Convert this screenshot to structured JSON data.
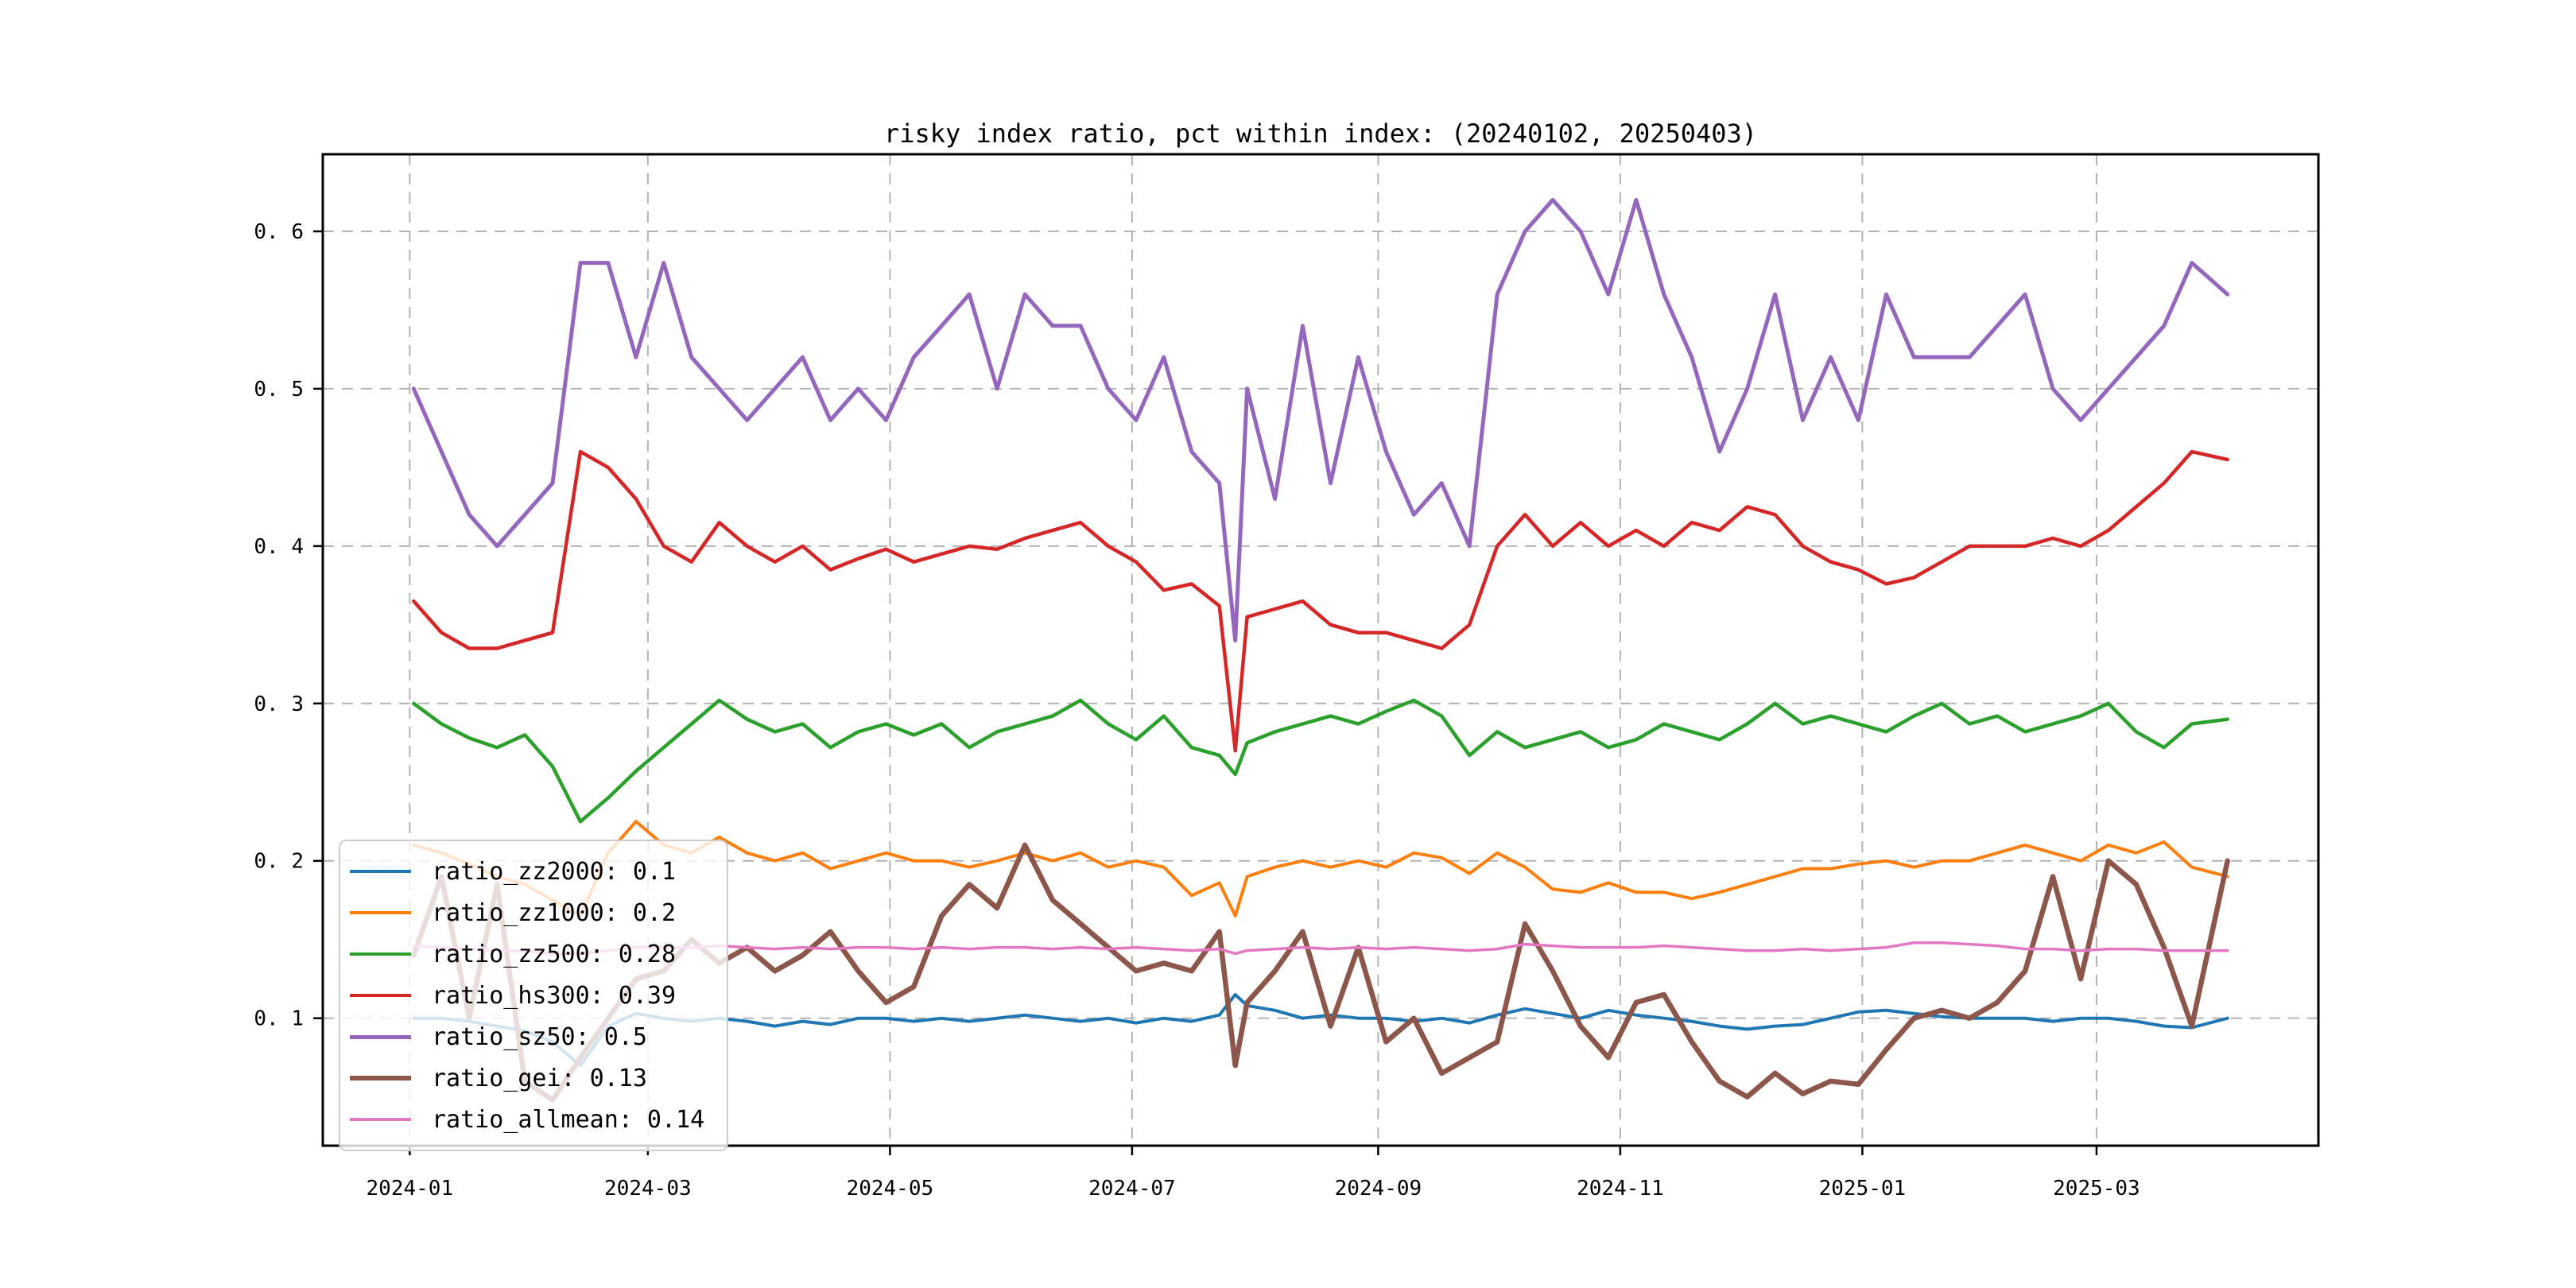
{
  "chart_data": {
    "type": "line",
    "title": "risky index ratio, pct within index: (20240102, 20250403)",
    "grid": {
      "style": "dashed",
      "color": "#b3b3b3",
      "on": true
    },
    "legend": {
      "position": "lower left",
      "background_alpha": 0.8,
      "border_color": "#cccccc"
    },
    "x_axis": {
      "label": "",
      "tick_labels": [
        "2024-01",
        "2024-03",
        "2024-05",
        "2024-07",
        "2024-09",
        "2024-11",
        "2025-01",
        "2025-03"
      ],
      "tick_days": [
        0,
        60,
        121,
        182,
        244,
        305,
        366,
        425
      ]
    },
    "y_axis": {
      "label": "",
      "tick_labels": [
        "0. 1",
        "0. 2",
        "0. 3",
        "0. 4",
        "0. 5",
        "0. 6"
      ],
      "tick_values": [
        0.1,
        0.2,
        0.3,
        0.4,
        0.5,
        0.6
      ]
    },
    "x_day_lim": [
      -21.9,
      480.9
    ],
    "ylim": [
      0.019,
      0.649
    ],
    "dates": [
      "2024-01-02",
      "2024-01-09",
      "2024-01-16",
      "2024-01-23",
      "2024-01-30",
      "2024-02-06",
      "2024-02-13",
      "2024-02-20",
      "2024-02-27",
      "2024-03-05",
      "2024-03-12",
      "2024-03-19",
      "2024-03-26",
      "2024-04-02",
      "2024-04-09",
      "2024-04-16",
      "2024-04-23",
      "2024-04-30",
      "2024-05-07",
      "2024-05-14",
      "2024-05-21",
      "2024-05-28",
      "2024-06-04",
      "2024-06-11",
      "2024-06-18",
      "2024-06-25",
      "2024-07-02",
      "2024-07-09",
      "2024-07-16",
      "2024-07-23",
      "2024-07-27",
      "2024-07-30",
      "2024-08-06",
      "2024-08-13",
      "2024-08-20",
      "2024-08-27",
      "2024-09-03",
      "2024-09-10",
      "2024-09-17",
      "2024-09-24",
      "2024-10-01",
      "2024-10-08",
      "2024-10-15",
      "2024-10-22",
      "2024-10-29",
      "2024-11-05",
      "2024-11-12",
      "2024-11-19",
      "2024-11-26",
      "2024-12-03",
      "2024-12-10",
      "2024-12-17",
      "2024-12-24",
      "2024-12-31",
      "2025-01-07",
      "2025-01-14",
      "2025-01-21",
      "2025-01-28",
      "2025-02-04",
      "2025-02-11",
      "2025-02-18",
      "2025-02-25",
      "2025-03-04",
      "2025-03-11",
      "2025-03-18",
      "2025-03-25",
      "2025-04-03"
    ],
    "x_days": [
      1,
      8,
      15,
      22,
      29,
      36,
      43,
      50,
      57,
      64,
      71,
      78,
      85,
      92,
      99,
      106,
      113,
      120,
      127,
      134,
      141,
      148,
      155,
      162,
      169,
      176,
      183,
      190,
      197,
      204,
      208,
      211,
      218,
      225,
      232,
      239,
      246,
      253,
      260,
      267,
      274,
      281,
      288,
      295,
      302,
      309,
      316,
      323,
      330,
      337,
      344,
      351,
      358,
      365,
      372,
      379,
      386,
      393,
      400,
      407,
      414,
      421,
      428,
      435,
      442,
      449,
      458
    ],
    "series": [
      {
        "name": "ratio_zz2000",
        "legend_label": "ratio_zz2000: 0.1",
        "shown_value": 0.1,
        "color": "#1f77b4",
        "line_width": 4,
        "values": [
          0.1,
          0.1,
          0.098,
          0.095,
          0.092,
          0.085,
          0.07,
          0.095,
          0.103,
          0.1,
          0.098,
          0.1,
          0.098,
          0.095,
          0.098,
          0.096,
          0.1,
          0.1,
          0.098,
          0.1,
          0.098,
          0.1,
          0.102,
          0.1,
          0.098,
          0.1,
          0.097,
          0.1,
          0.098,
          0.102,
          0.115,
          0.108,
          0.105,
          0.1,
          0.102,
          0.1,
          0.1,
          0.098,
          0.1,
          0.097,
          0.102,
          0.106,
          0.103,
          0.1,
          0.105,
          0.102,
          0.1,
          0.098,
          0.095,
          0.093,
          0.095,
          0.096,
          0.1,
          0.104,
          0.105,
          0.103,
          0.101,
          0.1,
          0.1,
          0.1,
          0.098,
          0.1,
          0.1,
          0.098,
          0.095,
          0.094,
          0.1
        ]
      },
      {
        "name": "ratio_zz1000",
        "legend_label": "ratio_zz1000: 0.2",
        "shown_value": 0.2,
        "color": "#ff7f0e",
        "line_width": 4,
        "values": [
          0.21,
          0.205,
          0.198,
          0.19,
          0.185,
          0.175,
          0.165,
          0.205,
          0.225,
          0.21,
          0.205,
          0.215,
          0.205,
          0.2,
          0.205,
          0.195,
          0.2,
          0.205,
          0.2,
          0.2,
          0.196,
          0.2,
          0.205,
          0.2,
          0.205,
          0.196,
          0.2,
          0.196,
          0.178,
          0.186,
          0.165,
          0.19,
          0.196,
          0.2,
          0.196,
          0.2,
          0.196,
          0.205,
          0.202,
          0.192,
          0.205,
          0.196,
          0.182,
          0.18,
          0.186,
          0.18,
          0.18,
          0.176,
          0.18,
          0.185,
          0.19,
          0.195,
          0.195,
          0.198,
          0.2,
          0.196,
          0.2,
          0.2,
          0.205,
          0.21,
          0.205,
          0.2,
          0.21,
          0.205,
          0.212,
          0.196,
          0.19
        ]
      },
      {
        "name": "ratio_zz500",
        "legend_label": "ratio_zz500: 0.28",
        "shown_value": 0.28,
        "color": "#2ca02c",
        "line_width": 4.5,
        "values": [
          0.3,
          0.287,
          0.278,
          0.272,
          0.28,
          0.26,
          0.225,
          0.24,
          0.257,
          0.272,
          0.287,
          0.302,
          0.29,
          0.282,
          0.287,
          0.272,
          0.282,
          0.287,
          0.28,
          0.287,
          0.272,
          0.282,
          0.287,
          0.292,
          0.302,
          0.287,
          0.277,
          0.292,
          0.272,
          0.267,
          0.255,
          0.275,
          0.282,
          0.287,
          0.292,
          0.287,
          0.295,
          0.302,
          0.292,
          0.267,
          0.282,
          0.272,
          0.277,
          0.282,
          0.272,
          0.277,
          0.287,
          0.282,
          0.277,
          0.287,
          0.3,
          0.287,
          0.292,
          0.287,
          0.282,
          0.292,
          0.3,
          0.287,
          0.292,
          0.282,
          0.287,
          0.292,
          0.3,
          0.282,
          0.272,
          0.287,
          0.29
        ]
      },
      {
        "name": "ratio_hs300",
        "legend_label": "ratio_hs300: 0.39",
        "shown_value": 0.39,
        "color": "#d62728",
        "line_width": 4.5,
        "values": [
          0.365,
          0.345,
          0.335,
          0.335,
          0.34,
          0.345,
          0.46,
          0.45,
          0.43,
          0.4,
          0.39,
          0.415,
          0.4,
          0.39,
          0.4,
          0.385,
          0.392,
          0.398,
          0.39,
          0.395,
          0.4,
          0.398,
          0.405,
          0.41,
          0.415,
          0.4,
          0.39,
          0.372,
          0.376,
          0.362,
          0.27,
          0.355,
          0.36,
          0.365,
          0.35,
          0.345,
          0.345,
          0.34,
          0.335,
          0.35,
          0.4,
          0.42,
          0.4,
          0.415,
          0.4,
          0.41,
          0.4,
          0.415,
          0.41,
          0.425,
          0.42,
          0.4,
          0.39,
          0.385,
          0.376,
          0.38,
          0.39,
          0.4,
          0.4,
          0.4,
          0.405,
          0.4,
          0.41,
          0.425,
          0.44,
          0.46,
          0.455
        ]
      },
      {
        "name": "ratio_sz50",
        "legend_label": "ratio_sz50: 0.5",
        "shown_value": 0.5,
        "color": "#9467bd",
        "line_width": 5,
        "values": [
          0.5,
          0.46,
          0.42,
          0.4,
          0.42,
          0.44,
          0.58,
          0.58,
          0.52,
          0.58,
          0.52,
          0.5,
          0.48,
          0.5,
          0.52,
          0.48,
          0.5,
          0.48,
          0.52,
          0.54,
          0.56,
          0.5,
          0.56,
          0.54,
          0.54,
          0.5,
          0.48,
          0.52,
          0.46,
          0.44,
          0.34,
          0.5,
          0.43,
          0.54,
          0.44,
          0.52,
          0.46,
          0.42,
          0.44,
          0.4,
          0.56,
          0.6,
          0.62,
          0.6,
          0.56,
          0.62,
          0.56,
          0.52,
          0.46,
          0.5,
          0.56,
          0.48,
          0.52,
          0.48,
          0.56,
          0.52,
          0.52,
          0.52,
          0.54,
          0.56,
          0.5,
          0.48,
          0.5,
          0.52,
          0.54,
          0.58,
          0.56
        ]
      },
      {
        "name": "ratio_gei",
        "legend_label": "ratio_gei: 0.13",
        "shown_value": 0.13,
        "color": "#8c564b",
        "line_width": 6.5,
        "values": [
          0.14,
          0.19,
          0.1,
          0.185,
          0.06,
          0.048,
          0.075,
          0.1,
          0.125,
          0.13,
          0.15,
          0.135,
          0.145,
          0.13,
          0.14,
          0.155,
          0.13,
          0.11,
          0.12,
          0.165,
          0.185,
          0.17,
          0.21,
          0.175,
          0.16,
          0.145,
          0.13,
          0.135,
          0.13,
          0.155,
          0.07,
          0.11,
          0.13,
          0.155,
          0.095,
          0.145,
          0.085,
          0.1,
          0.065,
          0.075,
          0.085,
          0.16,
          0.13,
          0.095,
          0.075,
          0.11,
          0.115,
          0.085,
          0.06,
          0.05,
          0.065,
          0.052,
          0.06,
          0.058,
          0.08,
          0.1,
          0.105,
          0.1,
          0.11,
          0.13,
          0.19,
          0.125,
          0.2,
          0.185,
          0.145,
          0.095,
          0.2
        ]
      },
      {
        "name": "ratio_allmean",
        "legend_label": "ratio_allmean: 0.14",
        "shown_value": 0.14,
        "color": "#e377c2",
        "line_width": 3.5,
        "values": [
          0.146,
          0.145,
          0.144,
          0.143,
          0.143,
          0.141,
          0.141,
          0.143,
          0.145,
          0.145,
          0.145,
          0.146,
          0.145,
          0.144,
          0.145,
          0.144,
          0.145,
          0.145,
          0.144,
          0.145,
          0.144,
          0.145,
          0.145,
          0.144,
          0.145,
          0.144,
          0.145,
          0.144,
          0.143,
          0.144,
          0.141,
          0.143,
          0.144,
          0.145,
          0.144,
          0.145,
          0.144,
          0.145,
          0.144,
          0.143,
          0.144,
          0.147,
          0.146,
          0.145,
          0.145,
          0.145,
          0.146,
          0.145,
          0.144,
          0.143,
          0.143,
          0.144,
          0.143,
          0.144,
          0.145,
          0.148,
          0.148,
          0.147,
          0.146,
          0.144,
          0.144,
          0.143,
          0.144,
          0.144,
          0.143,
          0.143,
          0.143
        ]
      }
    ]
  }
}
